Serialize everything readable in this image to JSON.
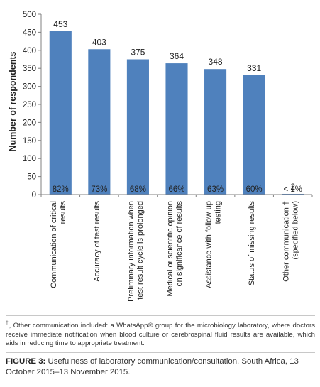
{
  "chart_data": {
    "type": "bar",
    "ylabel": "Number of respondents",
    "xlabel": "",
    "ylim": [
      0,
      500
    ],
    "yticks": [
      0,
      50,
      100,
      150,
      200,
      250,
      300,
      350,
      400,
      450,
      500
    ],
    "grid": false,
    "categories": [
      [
        "Communication of critical",
        "results"
      ],
      [
        "Accuracy of test results"
      ],
      [
        "Preliminary information when",
        "test result cycle is prolonged"
      ],
      [
        "Medical or scientific opinion",
        "on significance of results"
      ],
      [
        "Assistance with follow-up",
        "testing"
      ],
      [
        "Status of missing results"
      ],
      [
        "Other communication †",
        "(specified below)"
      ]
    ],
    "values": [
      453,
      403,
      375,
      364,
      348,
      331,
      2
    ],
    "value_labels": [
      "453",
      "403",
      "375",
      "364",
      "348",
      "331",
      "2"
    ],
    "percent_labels": [
      "82%",
      "73%",
      "68%",
      "66%",
      "63%",
      "60%",
      "< 1%"
    ],
    "bar_color": "#4f81bd"
  },
  "footnote": {
    "mark": "†",
    "text": ", Other communication included: a WhatsApp® group for the microbiology laboratory, where doctors receive immediate notification when blood culture or cerebrospinal fluid results are available, which aids in reducing time to appropriate treatment."
  },
  "caption": {
    "label": "FIGURE 3:",
    "text": " Usefulness of laboratory communication/consultation, South Africa, 13 October 2015–13 November 2015."
  }
}
